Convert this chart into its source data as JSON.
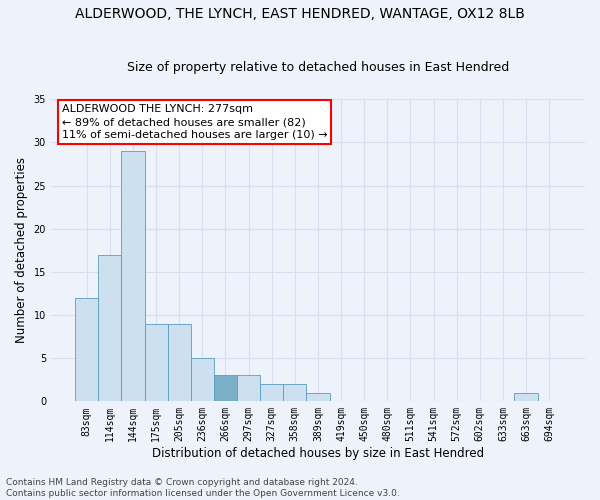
{
  "title": "ALDERWOOD, THE LYNCH, EAST HENDRED, WANTAGE, OX12 8LB",
  "subtitle": "Size of property relative to detached houses in East Hendred",
  "xlabel": "Distribution of detached houses by size in East Hendred",
  "ylabel": "Number of detached properties",
  "bar_color": "#cce0f0",
  "bar_edge_color": "#5b9dc0",
  "highlight_bar_index": 6,
  "highlight_bar_color": "#7aafc8",
  "background_color": "#eef2fb",
  "grid_color": "#d8dff0",
  "bins": [
    "83sqm",
    "114sqm",
    "144sqm",
    "175sqm",
    "205sqm",
    "236sqm",
    "266sqm",
    "297sqm",
    "327sqm",
    "358sqm",
    "389sqm",
    "419sqm",
    "450sqm",
    "480sqm",
    "511sqm",
    "541sqm",
    "572sqm",
    "602sqm",
    "633sqm",
    "663sqm",
    "694sqm"
  ],
  "values": [
    12,
    17,
    29,
    9,
    9,
    5,
    3,
    3,
    2,
    2,
    1,
    0,
    0,
    0,
    0,
    0,
    0,
    0,
    0,
    1,
    0
  ],
  "ylim": [
    0,
    35
  ],
  "yticks": [
    0,
    5,
    10,
    15,
    20,
    25,
    30,
    35
  ],
  "vline_x": 6.5,
  "annotation_text_line1": "ALDERWOOD THE LYNCH: 277sqm",
  "annotation_text_line2": "← 89% of detached houses are smaller (82)",
  "annotation_text_line3": "11% of semi-detached houses are larger (10) →",
  "footer": "Contains HM Land Registry data © Crown copyright and database right 2024.\nContains public sector information licensed under the Open Government Licence v3.0.",
  "title_fontsize": 10,
  "subtitle_fontsize": 9,
  "xlabel_fontsize": 8.5,
  "ylabel_fontsize": 8.5,
  "tick_fontsize": 7,
  "footer_fontsize": 6.5,
  "annotation_fontsize": 8
}
